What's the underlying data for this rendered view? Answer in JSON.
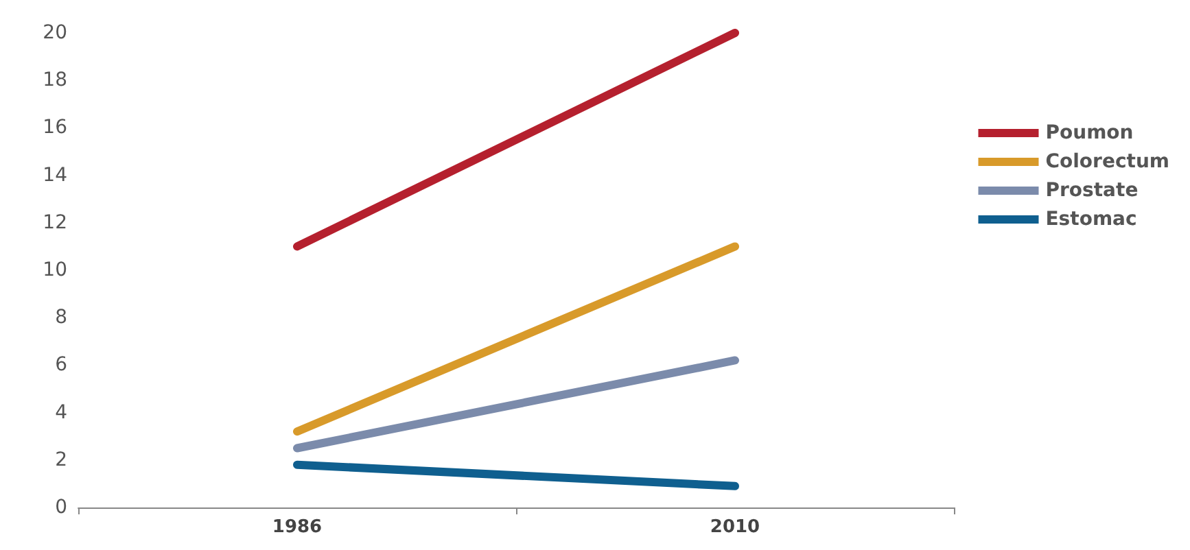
{
  "chart_data": {
    "type": "line",
    "categories": [
      "1986",
      "2010"
    ],
    "series": [
      {
        "name": "Poumon",
        "color": "#b5202e",
        "values": [
          11,
          20
        ]
      },
      {
        "name": "Colorectum",
        "color": "#d89a2a",
        "values": [
          3.2,
          11
        ]
      },
      {
        "name": "Prostate",
        "color": "#7b8bab",
        "values": [
          2.5,
          6.2
        ]
      },
      {
        "name": "Estomac",
        "color": "#0f5f8f",
        "values": [
          1.8,
          0.9
        ]
      }
    ],
    "ylim": [
      0,
      20
    ],
    "yticks": [
      0,
      2,
      4,
      6,
      8,
      10,
      12,
      14,
      16,
      18,
      20
    ],
    "grid": false,
    "legend": "right",
    "marker": "none",
    "line_style": "solid"
  }
}
